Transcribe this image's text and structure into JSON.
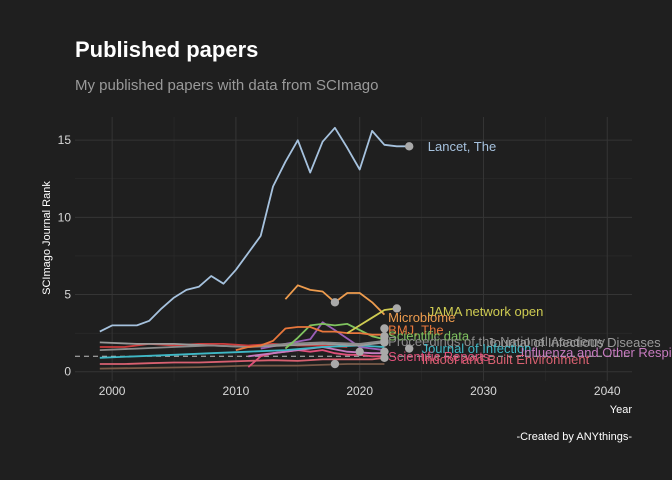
{
  "chart_data": {
    "type": "line",
    "title": "Published papers",
    "subtitle": "My published papers with data from SCImago",
    "xlabel": "Year",
    "ylabel": "SCImago Journal Rank",
    "caption": "-Created by ANYthings-",
    "xlim": [
      1997,
      2042
    ],
    "ylim": [
      -0.6,
      16.5
    ],
    "x_ticks": [
      2000,
      2010,
      2020,
      2030,
      2040
    ],
    "y_ticks": [
      0,
      5,
      10,
      15
    ],
    "reference_line": 1,
    "series": [
      {
        "name": "Lancet, The",
        "color": "#a6c2de",
        "x": [
          1999,
          2000,
          2001,
          2002,
          2003,
          2004,
          2005,
          2006,
          2007,
          2008,
          2009,
          2010,
          2011,
          2012,
          2013,
          2014,
          2015,
          2016,
          2017,
          2018,
          2019,
          2020,
          2021,
          2022,
          2023,
          2024
        ],
        "values": [
          2.6,
          3.0,
          3.0,
          3.0,
          3.3,
          4.1,
          4.8,
          5.3,
          5.5,
          6.2,
          5.7,
          6.6,
          7.7,
          8.8,
          12.0,
          13.6,
          15.0,
          12.9,
          14.9,
          15.8,
          14.5,
          13.1,
          15.6,
          14.7,
          14.6,
          14.6
        ],
        "points": [
          [
            2024,
            14.6
          ]
        ],
        "label_at": [
          2025.5,
          14.6
        ]
      },
      {
        "name": "JAMA network open",
        "color": "#cfcc52",
        "x": [
          2019,
          2020,
          2021,
          2022,
          2023
        ],
        "values": [
          2.5,
          3.0,
          3.5,
          4.0,
          4.1
        ],
        "points": [
          [
            2023,
            4.1
          ]
        ],
        "label_at": [
          2025.5,
          3.9
        ]
      },
      {
        "name": "Microbiome",
        "color": "#ee9c4e",
        "x": [
          2014,
          2015,
          2016,
          2017,
          2018,
          2019,
          2020,
          2021,
          2022
        ],
        "values": [
          4.7,
          5.6,
          5.3,
          5.2,
          4.5,
          5.1,
          5.1,
          4.5,
          3.7
        ],
        "points": [
          [
            2018,
            4.5
          ]
        ],
        "label_at": [
          2022.3,
          3.5
        ]
      },
      {
        "name": "BMJ, The",
        "color": "#e8773c",
        "x": [
          2010,
          2011,
          2012,
          2013,
          2014,
          2015,
          2016,
          2017,
          2018,
          2019,
          2020,
          2021,
          2022
        ],
        "values": [
          1.4,
          1.6,
          1.7,
          2.0,
          2.8,
          2.9,
          2.9,
          2.6,
          2.6,
          2.5,
          2.5,
          2.4,
          2.4
        ],
        "points": [
          [
            2022,
            2.8
          ]
        ],
        "label_at": [
          2022.3,
          2.7
        ]
      },
      {
        "name": "Scientific data",
        "color": "#7fc45f",
        "x": [
          2014,
          2015,
          2016,
          2017,
          2018,
          2019,
          2020,
          2021,
          2022
        ],
        "values": [
          1.5,
          2.2,
          3.0,
          3.1,
          3.0,
          3.1,
          2.7,
          2.3,
          2.1
        ],
        "points": [
          [
            2022,
            2.3
          ]
        ],
        "label_at": [
          2022.3,
          2.3
        ]
      },
      {
        "name": "Proceedings of the National Academy",
        "color": "#8c8c8c",
        "x": [
          1999,
          2002,
          2005,
          2008,
          2011,
          2014,
          2017,
          2020,
          2022
        ],
        "values": [
          1.4,
          1.5,
          1.6,
          1.7,
          1.6,
          1.8,
          1.9,
          1.8,
          2.0
        ],
        "points": [
          [
            2022,
            2.0
          ]
        ],
        "label_at": [
          2022.3,
          1.95
        ]
      },
      {
        "name": "Journal of Infectious Diseases",
        "color": "#9a9a9a",
        "x": [
          1999,
          2002,
          2005,
          2008,
          2011,
          2014,
          2017,
          2020,
          2022
        ],
        "values": [
          1.9,
          1.8,
          1.8,
          1.7,
          1.6,
          1.7,
          1.8,
          1.7,
          1.9
        ],
        "points": [
          [
            2022,
            1.9
          ]
        ],
        "label_at": [
          2030.3,
          1.9
        ]
      },
      {
        "name": "Journal of Infection",
        "color": "#3fb8c6",
        "x": [
          1999,
          2002,
          2005,
          2008,
          2011,
          2014,
          2017,
          2020,
          2022
        ],
        "values": [
          0.9,
          1.0,
          1.1,
          1.2,
          1.3,
          1.4,
          1.6,
          1.7,
          1.6
        ],
        "points": [
          [
            2024,
            1.5
          ]
        ],
        "label_at": [
          2025,
          1.5
        ]
      },
      {
        "name": "Influenza and Other Respiratory Viruses",
        "color": "#c77bc0",
        "x": [
          2011,
          2013,
          2015,
          2017,
          2019,
          2021,
          2022
        ],
        "values": [
          1.0,
          1.2,
          1.4,
          1.6,
          1.3,
          1.2,
          1.2
        ],
        "points": [
          [
            2022,
            1.3
          ]
        ],
        "label_at": [
          2033,
          1.25
        ]
      },
      {
        "name": "Indoor and Built Environment",
        "color": "#d86070",
        "x": [
          1999,
          2001,
          2003,
          2005,
          2007,
          2009,
          2011,
          2013,
          2015,
          2017,
          2019,
          2021,
          2022
        ],
        "values": [
          0.5,
          0.5,
          0.55,
          0.6,
          0.6,
          0.65,
          0.7,
          0.75,
          0.7,
          0.8,
          0.8,
          0.8,
          0.9
        ],
        "points": [
          [
            2022,
            0.9
          ]
        ],
        "label_at": [
          2025,
          0.8
        ]
      },
      {
        "name": "Scientific Reports",
        "color": "#e0507a",
        "x": [
          2011,
          2012,
          2013,
          2014,
          2015,
          2016,
          2017,
          2018,
          2019,
          2020,
          2021,
          2022
        ],
        "values": [
          0.3,
          1.0,
          1.2,
          1.3,
          1.4,
          1.3,
          1.4,
          1.2,
          1.1,
          1.1,
          1.0,
          1.0
        ],
        "points": [
          [
            2018,
            0.5
          ],
          [
            2020,
            1.3
          ]
        ],
        "label_at": [
          2022.3,
          1.0
        ]
      },
      {
        "name": "",
        "color": "#cc3c3c",
        "x": [
          1999,
          2001,
          2003,
          2005,
          2007,
          2009,
          2011,
          2013,
          2015,
          2017,
          2019
        ],
        "values": [
          1.6,
          1.6,
          1.8,
          1.7,
          1.8,
          1.8,
          1.7,
          1.8,
          1.7,
          1.7,
          1.6
        ],
        "points": [],
        "label_at": null
      },
      {
        "name": "",
        "color": "#9a5fb8",
        "x": [
          2012,
          2014,
          2016,
          2017,
          2018,
          2020,
          2022
        ],
        "values": [
          1.5,
          1.8,
          2.1,
          3.2,
          2.7,
          1.6,
          1.4
        ],
        "points": [],
        "label_at": null
      },
      {
        "name": "",
        "color": "#7a5a48",
        "x": [
          1999,
          2003,
          2007,
          2011,
          2015,
          2019,
          2022
        ],
        "values": [
          0.2,
          0.25,
          0.3,
          0.4,
          0.4,
          0.5,
          0.5
        ],
        "points": [],
        "label_at": null
      }
    ]
  }
}
